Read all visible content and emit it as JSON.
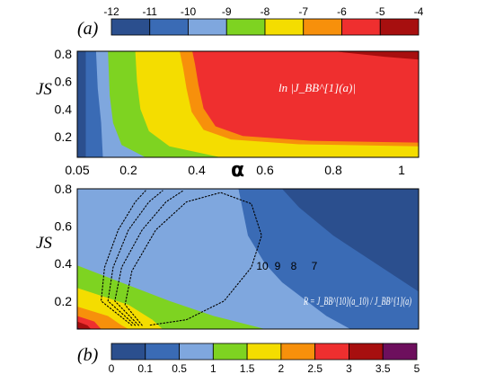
{
  "panel_a_tag": "(a)",
  "panel_b_tag": "(b)",
  "colors": {
    "a": [
      "#2b4f8e",
      "#3a6bb5",
      "#7fa7de",
      "#7ed321",
      "#f4dd00",
      "#f7900b",
      "#ef2f2f",
      "#a70f0f"
    ],
    "b": [
      "#2b4f8e",
      "#3a6bb5",
      "#7fa7de",
      "#7ed321",
      "#f4dd00",
      "#f7900b",
      "#ef2f2f",
      "#a70f0f",
      "#6d0f5d"
    ]
  },
  "chart_data": [
    {
      "type": "heatmap",
      "panel": "(a)",
      "xlabel": "α",
      "ylabel": "JS",
      "xlim": [
        0.05,
        1.05
      ],
      "ylim": [
        0.05,
        0.82
      ],
      "xticks": [
        "0.05",
        "0.2",
        "0.4",
        "0.6",
        "0.8",
        "1"
      ],
      "yticks": [
        "0.2",
        "0.4",
        "0.6",
        "0.8"
      ],
      "annotation": "ln |J_BB^[1](a)|",
      "colorbar": {
        "boundaries": [
          "-12",
          "-11",
          "-10",
          "-9",
          "-8",
          "-7",
          "-6",
          "-5",
          "-4"
        ],
        "values": [
          -12,
          -11,
          -10,
          -9,
          -8,
          -7,
          -6,
          -5,
          -4
        ]
      },
      "boundary_curves": [
        {
          "level": -10,
          "points": [
            [
              0.075,
              0.05
            ],
            [
              0.075,
              0.82
            ]
          ]
        },
        {
          "level": -9,
          "points": [
            [
              0.125,
              0.05
            ],
            [
              0.12,
              0.3
            ],
            [
              0.11,
              0.55
            ],
            [
              0.105,
              0.82
            ]
          ]
        },
        {
          "level": -8,
          "points": [
            [
              0.25,
              0.05
            ],
            [
              0.18,
              0.14
            ],
            [
              0.155,
              0.3
            ],
            [
              0.145,
              0.5
            ],
            [
              0.14,
              0.82
            ]
          ]
        },
        {
          "level": -7,
          "points": [
            [
              0.47,
              0.05
            ],
            [
              0.32,
              0.13
            ],
            [
              0.26,
              0.24
            ],
            [
              0.235,
              0.4
            ],
            [
              0.225,
              0.6
            ],
            [
              0.22,
              0.82
            ]
          ]
        },
        {
          "level": -6,
          "points": [
            [
              1.05,
              0.13
            ],
            [
              0.7,
              0.145
            ],
            [
              0.5,
              0.18
            ],
            [
              0.42,
              0.25
            ],
            [
              0.385,
              0.38
            ],
            [
              0.37,
              0.55
            ],
            [
              0.36,
              0.7
            ],
            [
              0.35,
              0.82
            ]
          ]
        },
        {
          "level": -5,
          "points": [
            [
              0.8,
              0.82
            ],
            [
              0.95,
              0.78
            ],
            [
              1.05,
              0.76
            ]
          ]
        }
      ]
    },
    {
      "type": "heatmap",
      "panel": "(b)",
      "xlabel": "α",
      "ylabel": "JS",
      "xlim": [
        0.05,
        1.05
      ],
      "ylim": [
        0.05,
        0.8
      ],
      "xticks": [
        "0.05",
        "0.2",
        "0.4",
        "0.6",
        "0.8",
        "1"
      ],
      "yticks": [
        "0.2",
        "0.4",
        "0.6",
        "0.8"
      ],
      "annotation": "R = J_BB^[10](a_10) / J_BB^[1](a)",
      "colorbar": {
        "boundaries": [
          "0",
          "0.1",
          "0.5",
          "1",
          "1.5",
          "2",
          "2.5",
          "3",
          "3.5",
          "5"
        ],
        "values": [
          0,
          0.1,
          0.5,
          1,
          1.5,
          2,
          2.5,
          3,
          3.5,
          5
        ]
      },
      "contour_labels": [
        "10",
        "9",
        "8",
        "7"
      ],
      "contour_levels": [
        10,
        9,
        8,
        7
      ],
      "boundary_curves": [
        {
          "level": 0.1,
          "points": [
            [
              0.05,
              0.05
            ],
            [
              0.05,
              0.05
            ]
          ]
        },
        {
          "level": 0.5,
          "points": [
            [
              0.52,
              0.82
            ],
            [
              0.55,
              0.55
            ],
            [
              0.6,
              0.4
            ],
            [
              0.65,
              0.3
            ],
            [
              0.78,
              0.12
            ],
            [
              0.85,
              0.05
            ]
          ]
        },
        {
          "level": 1,
          "points": [
            [
              0.05,
              0.39
            ],
            [
              0.32,
              0.2
            ],
            [
              0.45,
              0.12
            ],
            [
              0.6,
              0.05
            ]
          ]
        },
        {
          "level": 1.5,
          "points": [
            [
              0.05,
              0.27
            ],
            [
              0.2,
              0.18
            ],
            [
              0.27,
              0.1
            ],
            [
              0.3,
              0.05
            ]
          ]
        },
        {
          "level": 2,
          "points": [
            [
              0.05,
              0.17
            ],
            [
              0.14,
              0.12
            ],
            [
              0.18,
              0.07
            ],
            [
              0.2,
              0.05
            ]
          ]
        },
        {
          "level": 2.5,
          "points": [
            [
              0.05,
              0.12
            ],
            [
              0.1,
              0.09
            ],
            [
              0.12,
              0.05
            ]
          ]
        },
        {
          "level": 3,
          "points": [
            [
              0.05,
              0.09
            ],
            [
              0.08,
              0.07
            ],
            [
              0.09,
              0.05
            ]
          ]
        },
        {
          "level": 3.5,
          "points": [
            [
              0.05,
              0.06
            ],
            [
              0.06,
              0.05
            ]
          ]
        },
        {
          "level": -0.5,
          "points": [
            [
              0.64,
              0.82
            ],
            [
              0.7,
              0.7
            ],
            [
              0.8,
              0.55
            ],
            [
              1.05,
              0.25
            ]
          ]
        }
      ],
      "contour_curves": [
        {
          "label": "10",
          "points": [
            [
              0.24,
              0.07
            ],
            [
              0.19,
              0.18
            ],
            [
              0.21,
              0.36
            ],
            [
              0.28,
              0.58
            ],
            [
              0.37,
              0.73
            ],
            [
              0.47,
              0.78
            ],
            [
              0.56,
              0.72
            ],
            [
              0.59,
              0.55
            ],
            [
              0.56,
              0.38
            ],
            [
              0.48,
              0.2
            ],
            [
              0.37,
              0.1
            ],
            [
              0.26,
              0.07
            ]
          ]
        },
        {
          "label": "9",
          "points": [
            [
              0.23,
              0.07
            ],
            [
              0.16,
              0.2
            ],
            [
              0.18,
              0.38
            ],
            [
              0.24,
              0.58
            ],
            [
              0.31,
              0.73
            ],
            [
              0.36,
              0.79
            ]
          ]
        },
        {
          "label": "8",
          "points": [
            [
              0.22,
              0.07
            ],
            [
              0.14,
              0.2
            ],
            [
              0.155,
              0.38
            ],
            [
              0.2,
              0.58
            ],
            [
              0.26,
              0.73
            ],
            [
              0.3,
              0.79
            ]
          ]
        },
        {
          "label": "7",
          "points": [
            [
              0.21,
              0.07
            ],
            [
              0.12,
              0.2
            ],
            [
              0.13,
              0.38
            ],
            [
              0.17,
              0.58
            ],
            [
              0.22,
              0.73
            ],
            [
              0.25,
              0.79
            ]
          ]
        }
      ]
    }
  ]
}
